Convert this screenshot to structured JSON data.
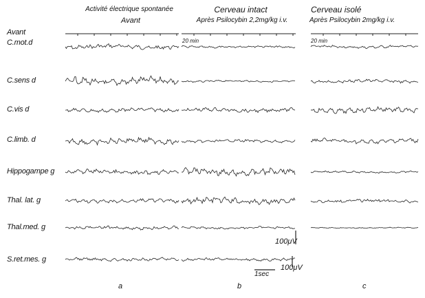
{
  "headers": {
    "a_line1": "Activité électrique spontanée",
    "a_line2": "Avant",
    "b_line1": "Cerveau intact",
    "b_line2": "Après Psilocybin 2,2mg/kg i.v.",
    "c_line1": "Cerveau isolé",
    "c_line2": "Après Psilocybin 2mg/kg i.v."
  },
  "time_marks": {
    "avant_label": "Avant",
    "b_interval": "20 min",
    "c_interval": "20 min"
  },
  "channels": [
    {
      "label": "C.mot.d"
    },
    {
      "label": "C.sens d"
    },
    {
      "label": "C.vis d"
    },
    {
      "label": "C.limb. d"
    },
    {
      "label": "Hippogampe g"
    },
    {
      "label": "Thal. lat. g"
    },
    {
      "label": "Thal.med. g"
    },
    {
      "label": "S.ret.mes. g"
    }
  ],
  "calibration": {
    "amp1": "100μV",
    "amp2": "100μV",
    "time": "1sec"
  },
  "column_letters": [
    "a",
    "b",
    "c"
  ]
}
